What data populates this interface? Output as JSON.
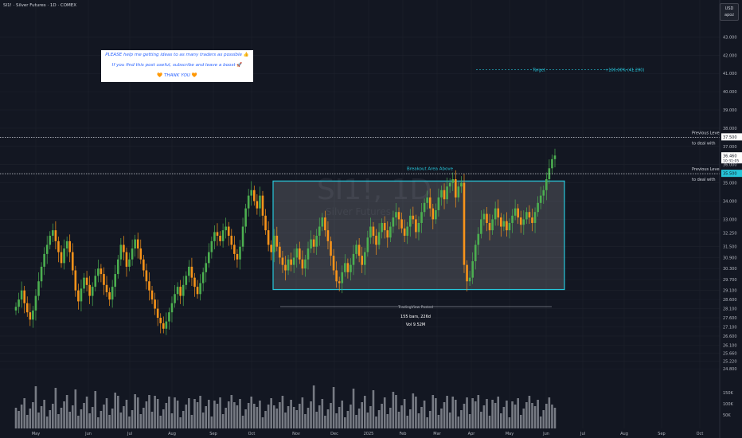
{
  "header": {
    "symbol_line": "SI1! · Silver Futures · 1D · COMEX"
  },
  "currency": {
    "code": "USD",
    "sub": "apoz"
  },
  "note": {
    "line1": "PLEASE help me getting ideas to as many traders as possible",
    "line2": "If you find this post useful, subscribe and leave a boost",
    "line3": "THANK YOU",
    "emoji1": "👍",
    "emoji2": "🚀",
    "emoji3": "🧡"
  },
  "colors": {
    "bg": "#131722",
    "up": "#4caf50",
    "down": "#f7931a",
    "box": "#26c6da",
    "grid": "#1e222d",
    "text": "#b2b5be"
  },
  "chart_data": {
    "type": "candlestick",
    "symbol": "SI1!",
    "title": "SI1! · Silver Futures · 1D · COMEX",
    "watermark": {
      "symbol": "SI1!, 1D",
      "name": "Silver Futures"
    },
    "price_axis": {
      "ticks": [
        "43.000",
        "42.000",
        "41.000",
        "40.000",
        "39.000",
        "38.000",
        "37.000",
        "36.000",
        "35.000",
        "34.000",
        "33.000",
        "32.250",
        "31.500",
        "30.900",
        "30.300",
        "29.700",
        "29.100",
        "28.600",
        "28.100",
        "27.600",
        "27.100",
        "26.600",
        "26.100",
        "25.660",
        "25.220",
        "24.800"
      ],
      "ylim": [
        24.5,
        43.5
      ]
    },
    "time_axis": [
      "May",
      "Jun",
      "Jul",
      "Aug",
      "Sep",
      "Oct",
      "Nov",
      "Dec",
      "2025",
      "Feb",
      "Mar",
      "Apr",
      "May",
      "Jun",
      "Jul",
      "Aug",
      "Sep",
      "Oct"
    ],
    "volume_axis": [
      "150K",
      "100K",
      "50K"
    ],
    "price_labels": [
      {
        "text": "37.500",
        "value": 37.5
      },
      {
        "text": "36.460",
        "value": 36.46,
        "sub": "10:31:05"
      },
      {
        "text": "35.500",
        "value": 35.5
      }
    ],
    "levels": [
      {
        "value": 37.5,
        "line1": "Previous Level",
        "line2": "to deal with"
      },
      {
        "value": 35.5,
        "line1": "Previous Level",
        "line2": "to deal with"
      }
    ],
    "target": {
      "label": "Target",
      "value_label": "+100.00% (41.200)",
      "value": 41.2
    },
    "box": {
      "label": "Breakout Area Above",
      "top": 35.1,
      "bottom": 29.15
    },
    "measure": {
      "brand": "TradingView Posted",
      "bars": "155 bars, 226d",
      "vol": "Vol 9.52M"
    },
    "closes": [
      28.2,
      28.6,
      29.1,
      28.4,
      27.9,
      27.5,
      28.0,
      28.8,
      29.6,
      30.4,
      31.1,
      31.6,
      32.1,
      32.4,
      31.8,
      31.2,
      30.6,
      31.4,
      31.8,
      31.2,
      30.2,
      29.1,
      28.5,
      29.2,
      29.8,
      29.4,
      28.8,
      29.3,
      29.9,
      30.3,
      30.0,
      29.4,
      29.0,
      28.6,
      29.3,
      30.0,
      30.8,
      31.6,
      31.2,
      30.4,
      30.8,
      31.4,
      31.9,
      31.4,
      30.8,
      30.2,
      29.6,
      29.1,
      28.6,
      28.1,
      27.6,
      27.3,
      27.0,
      27.4,
      27.9,
      28.4,
      28.9,
      29.3,
      28.8,
      29.4,
      29.9,
      30.4,
      29.8,
      29.3,
      28.9,
      29.5,
      30.1,
      30.6,
      31.2,
      31.8,
      32.3,
      32.1,
      31.8,
      32.4,
      32.6,
      32.1,
      31.6,
      31.1,
      30.8,
      31.5,
      32.6,
      33.6,
      34.3,
      34.6,
      34.0,
      33.6,
      34.3,
      33.2,
      32.4,
      31.6,
      31.2,
      32.1,
      31.5,
      30.9,
      30.5,
      30.2,
      30.8,
      30.5,
      30.9,
      31.4,
      30.8,
      30.3,
      30.8,
      31.4,
      31.9,
      31.5,
      32.1,
      32.6,
      33.1,
      32.4,
      31.8,
      31.0,
      30.2,
      29.6,
      29.5,
      30.1,
      30.6,
      30.1,
      30.5,
      31.1,
      31.6,
      31.0,
      30.5,
      31.2,
      32.0,
      32.6,
      32.1,
      31.6,
      32.3,
      32.8,
      32.4,
      32.0,
      32.6,
      33.1,
      33.4,
      33.0,
      32.5,
      32.1,
      32.6,
      33.2,
      33.0,
      32.3,
      32.8,
      33.4,
      33.9,
      34.2,
      33.6,
      33.0,
      33.5,
      34.2,
      34.6,
      34.1,
      34.8,
      35.0,
      35.2,
      34.2,
      34.8,
      35.0,
      30.5,
      29.6,
      29.8,
      30.7,
      31.6,
      32.2,
      33.0,
      33.3,
      32.8,
      32.4,
      33.0,
      33.6,
      33.1,
      32.6,
      32.9,
      32.4,
      32.8,
      33.2,
      33.6,
      33.1,
      32.7,
      33.0,
      33.4,
      33.1,
      32.8,
      33.4,
      33.9,
      34.3,
      34.6,
      35.2,
      35.8,
      36.3,
      36.5
    ]
  }
}
